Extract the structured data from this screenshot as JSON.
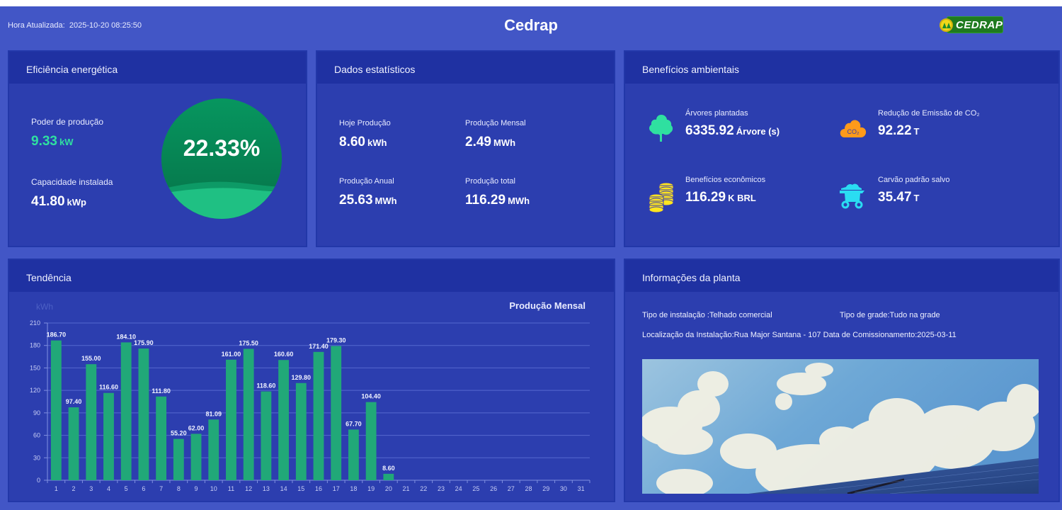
{
  "header": {
    "updated_label": "Hora Atualizada",
    "updated_value": "2025-10-20 08:25:50",
    "title": "Cedrap",
    "logo_text": "CEDRAP"
  },
  "efficiency": {
    "title": "Eficiência energética",
    "power_label": "Poder de produção",
    "power_value": "9.33",
    "power_unit": "kW",
    "capacity_label": "Capacidade instalada",
    "capacity_value": "41.80",
    "capacity_unit": "kWp",
    "percent_text": "22.33%",
    "percent": 22.33,
    "colors": {
      "gauge": "#07965f",
      "wave_light": "#1fc083",
      "value_green": "#2fe0a0"
    }
  },
  "stats": {
    "title": "Dados estatísticos",
    "items": [
      {
        "label": "Hoje Produção",
        "value": "8.60",
        "unit": "kWh"
      },
      {
        "label": "Produção Mensal",
        "value": "2.49",
        "unit": "MWh"
      },
      {
        "label": "Produção Anual",
        "value": "25.63",
        "unit": "MWh"
      },
      {
        "label": "Produção total",
        "value": "116.29",
        "unit": "MWh"
      }
    ]
  },
  "environment": {
    "title": "Benefícios ambientais",
    "items": [
      {
        "icon": "tree-icon",
        "label": "Árvores plantadas",
        "value": "6335.92",
        "unit": "Árvore (s)"
      },
      {
        "icon": "co2-cloud-icon",
        "label": "Redução de Emissão de CO₂",
        "value": "92.22",
        "unit": "T",
        "icon_text": "CO₂"
      },
      {
        "icon": "coins-icon",
        "label": "Benefícios econômicos",
        "value": "116.29",
        "unit": "K BRL"
      },
      {
        "icon": "coal-cart-icon",
        "label": "Carvão padrão salvo",
        "value": "35.47",
        "unit": "T"
      }
    ]
  },
  "trend": {
    "title": "Tendência"
  },
  "plant_info": {
    "title": "Informações da planta",
    "install_type": "Tipo de instalação :Telhado comercial",
    "grid_type": "Tipo de grade:Tudo na grade",
    "location": "Localização da Instalação:Rua Major Santana - 107",
    "commission_date": "Data de Comissionamento:2025-03-11",
    "photo_alt": "Céu com nuvens e painéis solares"
  },
  "chart_data": {
    "type": "bar",
    "title": "Produção Mensal",
    "xlabel": "",
    "ylabel": "kWh",
    "ylim": [
      0,
      210
    ],
    "yticks": [
      0,
      30,
      60,
      90,
      120,
      150,
      180,
      210
    ],
    "grid": true,
    "bar_color": "#21a878",
    "categories": [
      "1",
      "2",
      "3",
      "4",
      "5",
      "6",
      "7",
      "8",
      "9",
      "10",
      "11",
      "12",
      "13",
      "14",
      "15",
      "16",
      "17",
      "18",
      "19",
      "20",
      "21",
      "22",
      "23",
      "24",
      "25",
      "26",
      "27",
      "28",
      "29",
      "30",
      "31"
    ],
    "values": [
      186.7,
      97.4,
      155.0,
      116.6,
      184.1,
      175.9,
      111.8,
      55.2,
      62.0,
      81.09,
      161.0,
      175.5,
      118.6,
      160.6,
      129.8,
      171.4,
      179.3,
      67.7,
      104.4,
      8.6,
      null,
      null,
      null,
      null,
      null,
      null,
      null,
      null,
      null,
      null,
      null
    ],
    "labels": [
      "186.70",
      "97.40",
      "155.00",
      "116.60",
      "184.10",
      "175.90",
      "111.80",
      "55.20",
      "62.00",
      "81.09",
      "161.00",
      "175.50",
      "118.60",
      "160.60",
      "129.80",
      "171.40",
      "179.30",
      "67.70",
      "104.40",
      "8.60"
    ]
  }
}
